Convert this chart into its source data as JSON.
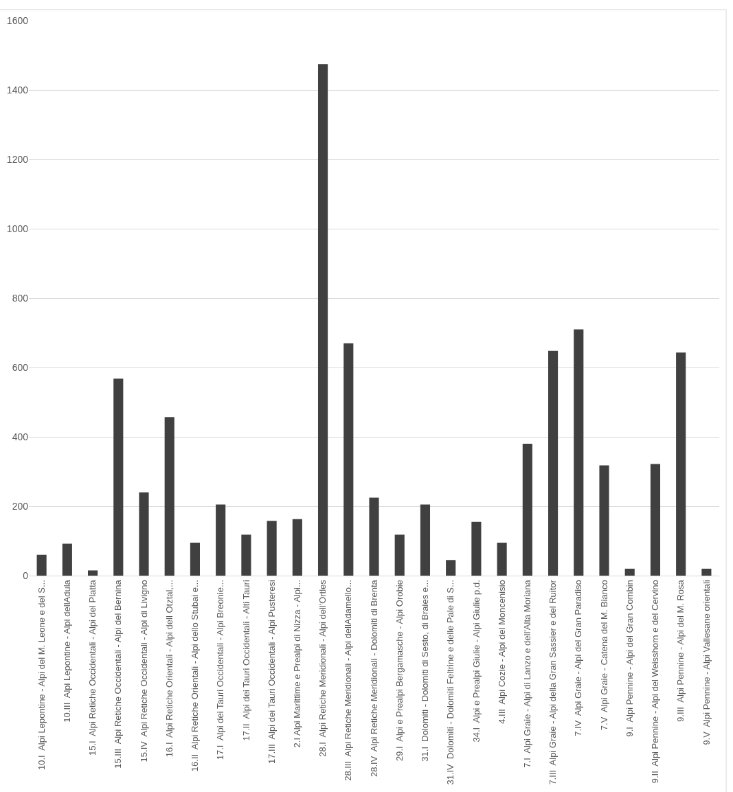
{
  "chart_data": {
    "type": "bar",
    "categories": [
      "10.I  Alpi Lepontine - Alpi del M. Leone e del S...",
      "10.III  Alpi Lepontine - Alpi dellAdula",
      "15.I  Alpi Retiche Occidentali - Alpi del Platta",
      "15.III  Alpi Retiche Occidentali - Alpi del Bernina",
      "15.IV  Alpi Retiche Occidentali - Alpi di Livigno",
      "16.I  Alpi Retiche Orientali - Alpi dell Otztal,...",
      "16.II  Alpi Retiche Orientali - Alpi dello Stubai e...",
      "17.I  Alpi dei Tauri Occidentali - Alpi Breonie...",
      "17.II  Alpi dei Tauri Occidentali - Alti Tauri",
      "17.III  Alpi dei Tauri Occidentali - Alpi Pusteresi",
      "2.I Alpi Marittime e Prealpi di Nizza - Alpi...",
      "28.I  Alpi Retiche Meridionali - Alpi dell'Ortles",
      "28.III  Alpi Retiche Meridionali - Alpi dellAdamello...",
      "28.IV  Alpi Retiche Meridionali - Dolomiti di Brenta",
      "29.I  Alpi e Prealpi Bergamasche - Alpi Orobie",
      "31.I  Dolomiti - Dolomiti di Sesto, di Braies e...",
      "31.IV  Dolomiti - Dolomiti Feltrine e delle Pale di S...",
      "34.I  Alpi e Prealpi Giulie - Alpi Giulie p.d.",
      "4.III  Alpi Cozie - Alpi del Moncenisio",
      "7.I  Alpi Graie - Alpi di Lanzo e dell'Alta Moriana",
      "7.III  Alpi Graie - Alpi della Gran Sassier e del Ruitor",
      "7.IV  Alpi Graie - Alpi del Gran Paradiso",
      "7.V  Alpi Graie - Catena del M. Bianco",
      "9.I  Alpi Pennine - Alpi del Gran Combin",
      "9.II  Alpi Pennine - Alpi del Weisshorn e del Cervino",
      "9.III  Alpi Pennine - Alpi del M. Rosa",
      "9.V  Alpi Pennine - Alpi Vallesane orientali"
    ],
    "values": [
      60,
      92,
      15,
      568,
      240,
      457,
      95,
      205,
      118,
      158,
      163,
      1475,
      670,
      225,
      118,
      205,
      45,
      155,
      95,
      380,
      648,
      710,
      318,
      20,
      322,
      643,
      20
    ],
    "color": "#404040",
    "ylim": [
      0,
      1600
    ],
    "yticks": [
      0,
      200,
      400,
      600,
      800,
      1000,
      1200,
      1400,
      1600
    ],
    "grid": "y"
  }
}
